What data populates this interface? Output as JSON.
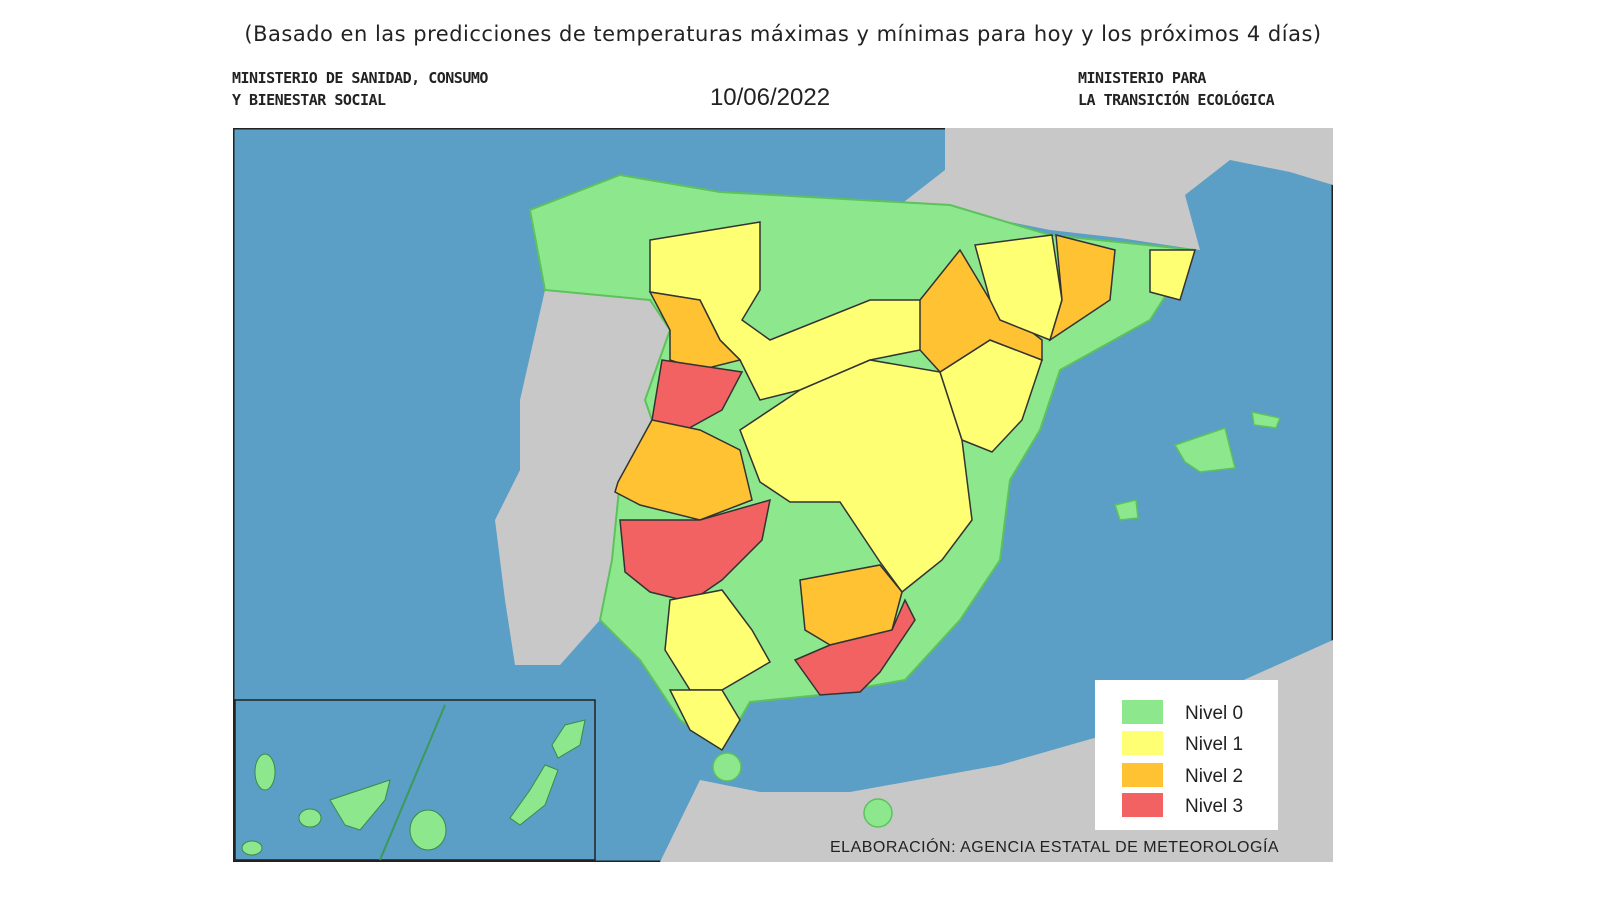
{
  "header": {
    "subtitle": "(Basado en las predicciones de temperaturas máximas y mínimas para hoy y los próximos 4 días)",
    "left_ministry": [
      "MINISTERIO DE SANIDAD, CONSUMO",
      "Y BIENESTAR SOCIAL"
    ],
    "date": "10/06/2022",
    "right_ministry": [
      "MINISTERIO PARA",
      "LA TRANSICIÓN ECOLÓGICA"
    ]
  },
  "map": {
    "colors": {
      "sea": "#5b9ec6",
      "land_other": "#c8c8c8",
      "nivel_0": "#8de88d",
      "nivel_1": "#ffff73",
      "nivel_2": "#ffc233",
      "nivel_3": "#f26262"
    },
    "legend": [
      {
        "label": "Nivel 0",
        "color": "#8de88d"
      },
      {
        "label": "Nivel 1",
        "color": "#ffff73"
      },
      {
        "label": "Nivel 2",
        "color": "#ffc233"
      },
      {
        "label": "Nivel 3",
        "color": "#f26262"
      }
    ],
    "attribution": "ELABORACIÓN: AGENCIA ESTATAL DE METEOROLOGÍA"
  }
}
